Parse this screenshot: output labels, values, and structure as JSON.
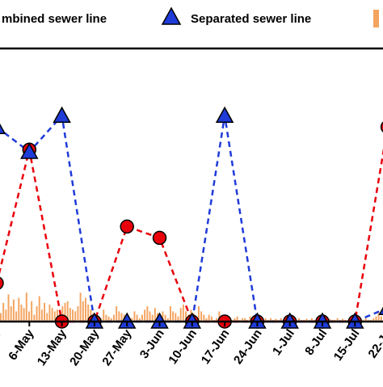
{
  "chart_data": {
    "type": "line",
    "legend": {
      "placement": "top",
      "entries": [
        {
          "label": "mbined sewer line",
          "marker": "circle",
          "color": "#e8000b"
        },
        {
          "label": "Separated sewer line",
          "marker": "triangle",
          "color": "#1f3bd8"
        },
        {
          "label": "",
          "marker": "bar",
          "color": "#f4a460"
        }
      ]
    },
    "categories": [
      "r",
      "6-May",
      "13-May",
      "20-May",
      "27-May",
      "3-Jun",
      "10-Jun",
      "17-Jun",
      "24-Jun",
      "1-Jul",
      "8-Jul",
      "15-Jul",
      "22-Ju"
    ],
    "axis_order": [
      "17-Jun",
      "24-Jun",
      "1-Jul",
      "8-Jul",
      "15-Jul",
      "22-Ju"
    ],
    "series": [
      {
        "name": "mbined sewer line",
        "marker": "circle",
        "color": "#e8000b",
        "values": [
          0.85,
          3.8,
          0.0,
          0.0,
          2.1,
          1.85,
          0.0,
          0.0,
          0.0,
          0.0,
          0.0,
          0.0,
          4.3
        ]
      },
      {
        "name": "Separated sewer line",
        "marker": "triangle",
        "color": "#1f3bd8",
        "values": [
          4.3,
          3.75,
          4.55,
          0.0,
          0.0,
          0.0,
          0.0,
          4.55,
          0.0,
          0.0,
          0.0,
          0.0,
          0.3
        ]
      }
    ],
    "bars": {
      "color": "#f4a460",
      "values": [
        0.25,
        0.55,
        0.35,
        0.8,
        0.45,
        0.65,
        0.3,
        0.7,
        0.5,
        0.4,
        0.85,
        0.3,
        0.6,
        0.2,
        0.45,
        0.75,
        0.35,
        0.55,
        0.25,
        0.5,
        0.4,
        0.3,
        0.35,
        0.25,
        0.45,
        0.55,
        0.6,
        0.4,
        0.35,
        0.3,
        0.45,
        0.85,
        0.6,
        0.7,
        0.5,
        0.35,
        0.25,
        0.2,
        0.15,
        0.1,
        0.35,
        0.2,
        0.15,
        0.1,
        0.2,
        0.45,
        0.3,
        0.25,
        0.2,
        0.15,
        0.05,
        0.1,
        0.3,
        0.2,
        0.1,
        0.2,
        0.35,
        0.45,
        0.3,
        0.2,
        0.4,
        0.25,
        0.15,
        0.3,
        0.2,
        0.1,
        0.45,
        0.3,
        0.25,
        0.15,
        0.4,
        0.5,
        0.3,
        0.2,
        0.35,
        0.25,
        0.15,
        0.45,
        0.3,
        0.2,
        0.1,
        0.2,
        0.15,
        0.05,
        0.1,
        0.3,
        0.2,
        0.15,
        0.2,
        0.1,
        0.05,
        0.1,
        0.15,
        0.05,
        0.1,
        0.1,
        0.05,
        0.15,
        0.1,
        0.05,
        0.1,
        0.1,
        0.05,
        0.1,
        0.05,
        0.1,
        0.05,
        0.08,
        0.05,
        0.1,
        0.05,
        0.05,
        0.1,
        0.05,
        0.08,
        0.05,
        0.1,
        0.05,
        0.05,
        0.08,
        0.05,
        0.1,
        0.05,
        0.05,
        0.1,
        0.08,
        0.05,
        0.05,
        0.08,
        0.05,
        0.05,
        0.1,
        0.05,
        0.08,
        0.05,
        0.05,
        0.1,
        0.05,
        0.05,
        0.08,
        0.05,
        0.05,
        0.1,
        0.05,
        0.05,
        0.1,
        0.15,
        0.25,
        0.15
      ]
    },
    "ylim": [
      0,
      5
    ],
    "grid": false
  }
}
